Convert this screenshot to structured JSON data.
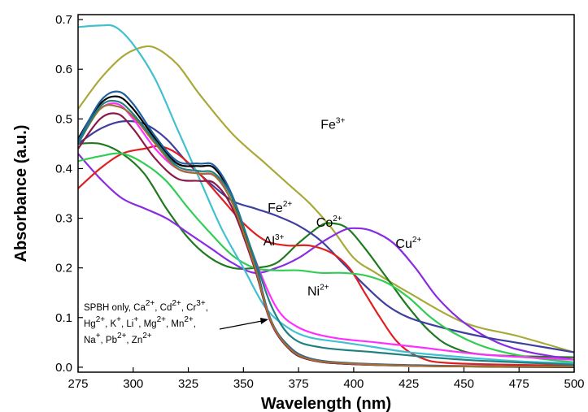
{
  "chart_data": {
    "type": "line",
    "title": "",
    "xlabel": "Wavelength (nm)",
    "ylabel": "Absorbance (a.u.)",
    "xlim": [
      275,
      500
    ],
    "ylim": [
      -0.01,
      0.71
    ],
    "x_ticks": [
      "275",
      "300",
      "325",
      "350",
      "375",
      "400",
      "425",
      "450",
      "475",
      "500"
    ],
    "y_ticks": [
      "0.0",
      "0.1",
      "0.2",
      "0.3",
      "0.4",
      "0.5",
      "0.6",
      "0.7"
    ],
    "grid": false,
    "series": [
      {
        "name": "Fe3+",
        "color": "#a9a93a",
        "points": [
          [
            275,
            0.52
          ],
          [
            285,
            0.58
          ],
          [
            295,
            0.625
          ],
          [
            303,
            0.643
          ],
          [
            310,
            0.643
          ],
          [
            320,
            0.61
          ],
          [
            330,
            0.55
          ],
          [
            345,
            0.47
          ],
          [
            360,
            0.41
          ],
          [
            370,
            0.37
          ],
          [
            380,
            0.33
          ],
          [
            390,
            0.28
          ],
          [
            400,
            0.22
          ],
          [
            410,
            0.19
          ],
          [
            425,
            0.15
          ],
          [
            450,
            0.09
          ],
          [
            475,
            0.062
          ],
          [
            500,
            0.03
          ]
        ]
      },
      {
        "name": "Co2+",
        "color": "#1f7a1f",
        "points": [
          [
            275,
            0.45
          ],
          [
            285,
            0.45
          ],
          [
            295,
            0.43
          ],
          [
            305,
            0.39
          ],
          [
            315,
            0.32
          ],
          [
            325,
            0.26
          ],
          [
            335,
            0.22
          ],
          [
            345,
            0.2
          ],
          [
            355,
            0.2
          ],
          [
            365,
            0.21
          ],
          [
            375,
            0.25
          ],
          [
            385,
            0.285
          ],
          [
            390,
            0.29
          ],
          [
            397,
            0.28
          ],
          [
            405,
            0.24
          ],
          [
            415,
            0.18
          ],
          [
            425,
            0.12
          ],
          [
            435,
            0.07
          ],
          [
            445,
            0.04
          ],
          [
            460,
            0.025
          ],
          [
            500,
            0.02
          ]
        ]
      },
      {
        "name": "Cu2+",
        "color": "#8a2be2",
        "points": [
          [
            275,
            0.43
          ],
          [
            285,
            0.38
          ],
          [
            295,
            0.34
          ],
          [
            305,
            0.32
          ],
          [
            315,
            0.3
          ],
          [
            325,
            0.27
          ],
          [
            335,
            0.24
          ],
          [
            345,
            0.21
          ],
          [
            355,
            0.19
          ],
          [
            365,
            0.2
          ],
          [
            375,
            0.22
          ],
          [
            385,
            0.25
          ],
          [
            395,
            0.275
          ],
          [
            400,
            0.28
          ],
          [
            408,
            0.275
          ],
          [
            418,
            0.25
          ],
          [
            428,
            0.2
          ],
          [
            438,
            0.14
          ],
          [
            450,
            0.09
          ],
          [
            465,
            0.05
          ],
          [
            480,
            0.03
          ],
          [
            500,
            0.015
          ]
        ]
      },
      {
        "name": "Fe2+",
        "color": "#3f3fa0",
        "points": [
          [
            275,
            0.45
          ],
          [
            285,
            0.48
          ],
          [
            295,
            0.495
          ],
          [
            305,
            0.49
          ],
          [
            315,
            0.46
          ],
          [
            325,
            0.41
          ],
          [
            335,
            0.37
          ],
          [
            345,
            0.335
          ],
          [
            355,
            0.32
          ],
          [
            365,
            0.305
          ],
          [
            375,
            0.285
          ],
          [
            385,
            0.255
          ],
          [
            395,
            0.21
          ],
          [
            405,
            0.165
          ],
          [
            415,
            0.125
          ],
          [
            425,
            0.1
          ],
          [
            440,
            0.08
          ],
          [
            460,
            0.06
          ],
          [
            480,
            0.045
          ],
          [
            500,
            0.03
          ]
        ]
      },
      {
        "name": "Al3+",
        "color": "#e02020",
        "points": [
          [
            275,
            0.36
          ],
          [
            285,
            0.4
          ],
          [
            295,
            0.43
          ],
          [
            305,
            0.44
          ],
          [
            312,
            0.445
          ],
          [
            320,
            0.43
          ],
          [
            330,
            0.39
          ],
          [
            340,
            0.34
          ],
          [
            350,
            0.29
          ],
          [
            360,
            0.255
          ],
          [
            370,
            0.245
          ],
          [
            380,
            0.245
          ],
          [
            390,
            0.23
          ],
          [
            398,
            0.2
          ],
          [
            405,
            0.15
          ],
          [
            412,
            0.1
          ],
          [
            420,
            0.05
          ],
          [
            430,
            0.02
          ],
          [
            445,
            0.008
          ],
          [
            500,
            0.003
          ]
        ]
      },
      {
        "name": "Ni2+",
        "color": "#33cc55",
        "points": [
          [
            275,
            0.415
          ],
          [
            285,
            0.425
          ],
          [
            295,
            0.43
          ],
          [
            305,
            0.41
          ],
          [
            315,
            0.375
          ],
          [
            325,
            0.32
          ],
          [
            335,
            0.27
          ],
          [
            345,
            0.225
          ],
          [
            355,
            0.2
          ],
          [
            365,
            0.195
          ],
          [
            375,
            0.195
          ],
          [
            385,
            0.19
          ],
          [
            395,
            0.19
          ],
          [
            405,
            0.185
          ],
          [
            415,
            0.17
          ],
          [
            425,
            0.14
          ],
          [
            435,
            0.1
          ],
          [
            445,
            0.07
          ],
          [
            460,
            0.04
          ],
          [
            480,
            0.02
          ],
          [
            500,
            0.01
          ]
        ]
      },
      {
        "name": "",
        "color": "#40c0d0",
        "points": [
          [
            275,
            0.685
          ],
          [
            285,
            0.688
          ],
          [
            292,
            0.685
          ],
          [
            300,
            0.65
          ],
          [
            310,
            0.58
          ],
          [
            320,
            0.48
          ],
          [
            330,
            0.38
          ],
          [
            340,
            0.28
          ],
          [
            350,
            0.2
          ],
          [
            360,
            0.12
          ],
          [
            370,
            0.08
          ],
          [
            380,
            0.06
          ],
          [
            395,
            0.05
          ],
          [
            410,
            0.04
          ],
          [
            425,
            0.03
          ],
          [
            450,
            0.02
          ],
          [
            475,
            0.012
          ],
          [
            500,
            0.008
          ]
        ]
      },
      {
        "name": "",
        "color": "#ff30ff",
        "points": [
          [
            275,
            0.46
          ],
          [
            285,
            0.52
          ],
          [
            293,
            0.53
          ],
          [
            300,
            0.5
          ],
          [
            310,
            0.44
          ],
          [
            320,
            0.4
          ],
          [
            330,
            0.39
          ],
          [
            337,
            0.385
          ],
          [
            345,
            0.34
          ],
          [
            355,
            0.22
          ],
          [
            365,
            0.12
          ],
          [
            375,
            0.08
          ],
          [
            390,
            0.06
          ],
          [
            410,
            0.05
          ],
          [
            430,
            0.04
          ],
          [
            460,
            0.025
          ],
          [
            500,
            0.015
          ]
        ]
      },
      {
        "name": "",
        "color": "#000000",
        "points": [
          [
            275,
            0.46
          ],
          [
            285,
            0.53
          ],
          [
            293,
            0.545
          ],
          [
            300,
            0.52
          ],
          [
            310,
            0.46
          ],
          [
            320,
            0.41
          ],
          [
            330,
            0.405
          ],
          [
            337,
            0.4
          ],
          [
            345,
            0.34
          ],
          [
            355,
            0.21
          ],
          [
            362,
            0.1
          ],
          [
            370,
            0.04
          ],
          [
            380,
            0.015
          ],
          [
            400,
            0.006
          ],
          [
            440,
            0.002
          ],
          [
            500,
            0.0
          ]
        ]
      },
      {
        "name": "",
        "color": "#2060a0",
        "points": [
          [
            275,
            0.455
          ],
          [
            285,
            0.535
          ],
          [
            293,
            0.555
          ],
          [
            300,
            0.53
          ],
          [
            310,
            0.465
          ],
          [
            320,
            0.415
          ],
          [
            330,
            0.41
          ],
          [
            337,
            0.405
          ],
          [
            345,
            0.345
          ],
          [
            355,
            0.215
          ],
          [
            362,
            0.1
          ],
          [
            370,
            0.045
          ],
          [
            380,
            0.018
          ],
          [
            400,
            0.008
          ],
          [
            440,
            0.003
          ],
          [
            500,
            0.001
          ]
        ]
      },
      {
        "name": "",
        "color": "#8b1a4a",
        "points": [
          [
            275,
            0.44
          ],
          [
            285,
            0.5
          ],
          [
            293,
            0.51
          ],
          [
            300,
            0.48
          ],
          [
            310,
            0.42
          ],
          [
            320,
            0.38
          ],
          [
            330,
            0.375
          ],
          [
            337,
            0.37
          ],
          [
            345,
            0.32
          ],
          [
            355,
            0.2
          ],
          [
            362,
            0.095
          ],
          [
            370,
            0.04
          ],
          [
            380,
            0.015
          ],
          [
            400,
            0.006
          ],
          [
            440,
            0.002
          ],
          [
            500,
            0.001
          ]
        ]
      },
      {
        "name": "",
        "color": "#a07030",
        "points": [
          [
            275,
            0.45
          ],
          [
            285,
            0.52
          ],
          [
            293,
            0.525
          ],
          [
            300,
            0.505
          ],
          [
            310,
            0.45
          ],
          [
            320,
            0.4
          ],
          [
            330,
            0.39
          ],
          [
            337,
            0.385
          ],
          [
            345,
            0.33
          ],
          [
            355,
            0.205
          ],
          [
            362,
            0.098
          ],
          [
            370,
            0.042
          ],
          [
            380,
            0.016
          ],
          [
            400,
            0.007
          ],
          [
            440,
            0.002
          ],
          [
            500,
            0.001
          ]
        ]
      },
      {
        "name": "",
        "color": "#208080",
        "points": [
          [
            275,
            0.45
          ],
          [
            285,
            0.525
          ],
          [
            293,
            0.535
          ],
          [
            300,
            0.51
          ],
          [
            310,
            0.455
          ],
          [
            320,
            0.405
          ],
          [
            330,
            0.395
          ],
          [
            337,
            0.39
          ],
          [
            345,
            0.34
          ],
          [
            355,
            0.22
          ],
          [
            363,
            0.12
          ],
          [
            372,
            0.06
          ],
          [
            385,
            0.04
          ],
          [
            410,
            0.03
          ],
          [
            450,
            0.015
          ],
          [
            500,
            0.005
          ]
        ]
      }
    ],
    "annotations": [
      {
        "base": "Fe",
        "sup": "3+"
      },
      {
        "base": "Co",
        "sup": "2+"
      },
      {
        "base": "Cu",
        "sup": "2+"
      },
      {
        "base": "Fe",
        "sup": "2+"
      },
      {
        "base": "Al",
        "sup": "3+"
      },
      {
        "base": "Ni",
        "sup": "2+"
      }
    ],
    "note_lines": [
      [
        [
          "SPBH only, Ca",
          ""
        ],
        [
          "2+",
          "sup"
        ],
        [
          ", Cd",
          ""
        ],
        [
          "2+",
          "sup"
        ],
        [
          ", Cr",
          ""
        ],
        [
          "3+",
          "sup"
        ],
        [
          ",",
          ""
        ]
      ],
      [
        [
          "Hg",
          ""
        ],
        [
          "2+",
          "sup"
        ],
        [
          ", K",
          ""
        ],
        [
          "+",
          "sup"
        ],
        [
          ", Li",
          ""
        ],
        [
          "+",
          "sup"
        ],
        [
          ", Mg",
          ""
        ],
        [
          "2+",
          "sup"
        ],
        [
          ", Mn",
          ""
        ],
        [
          "2+",
          "sup"
        ],
        [
          ",",
          ""
        ]
      ],
      [
        [
          "Na",
          ""
        ],
        [
          "+",
          "sup"
        ],
        [
          ", Pb",
          ""
        ],
        [
          "2+",
          "sup"
        ],
        [
          ", Zn",
          ""
        ],
        [
          "2+",
          "sup"
        ]
      ]
    ]
  }
}
